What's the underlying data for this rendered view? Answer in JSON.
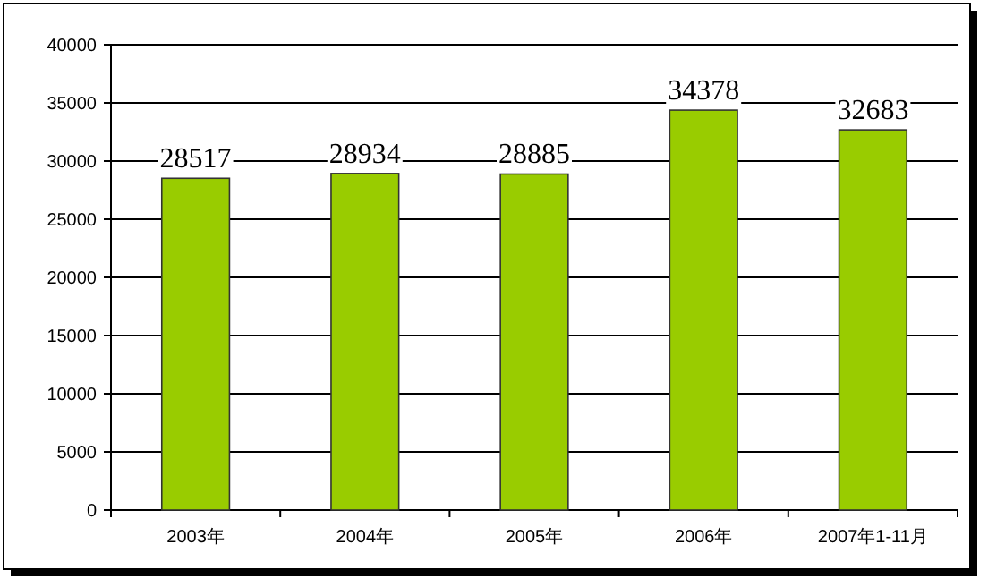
{
  "chart_data": {
    "type": "bar",
    "categories": [
      "2003年",
      "2004年",
      "2005年",
      "2006年",
      "2007年1-11月"
    ],
    "values": [
      28517,
      28934,
      28885,
      34378,
      32683
    ],
    "color": "#99cc00",
    "ylim": [
      0,
      40000
    ],
    "yticks": [
      0,
      5000,
      10000,
      15000,
      20000,
      25000,
      30000,
      35000,
      40000
    ],
    "grid": "y",
    "data_labels": true
  }
}
